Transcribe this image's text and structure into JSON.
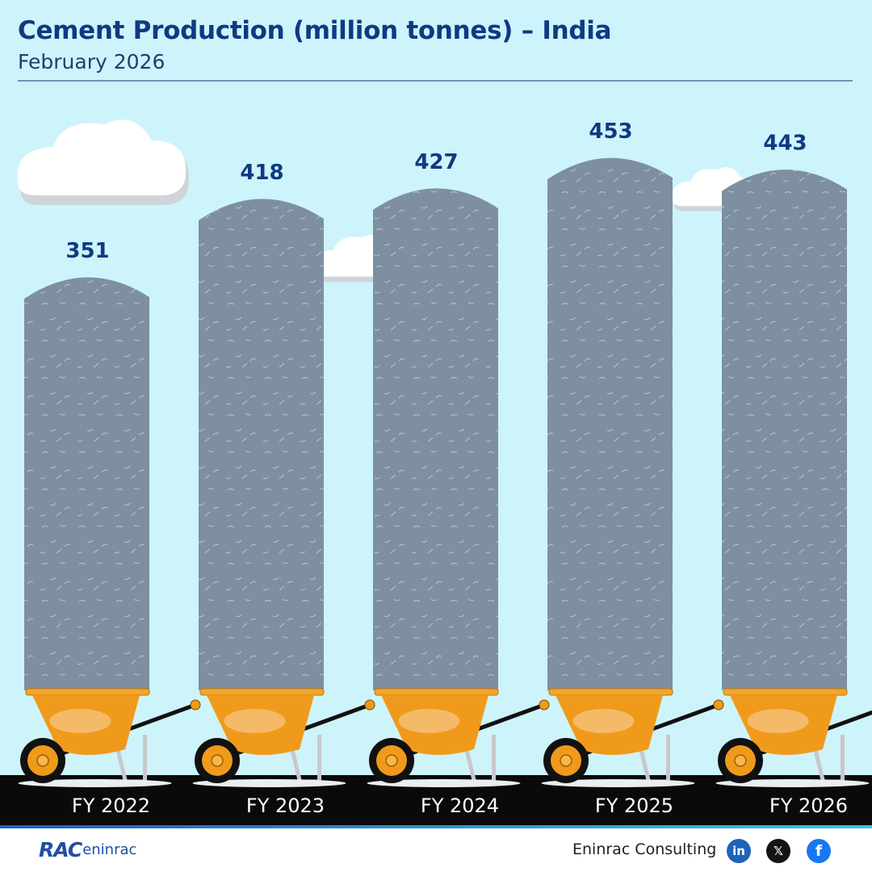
{
  "title": "Cement Production (million tonnes) – India",
  "subtitle": "February 2026",
  "chart_data": {
    "type": "bar",
    "title": "Cement Production (million tonnes) – India",
    "subtitle": "February 2026",
    "categories": [
      "FY 2022",
      "FY 2023",
      "FY 2024",
      "FY 2025",
      "FY 2026"
    ],
    "series": [
      {
        "values": [
          351,
          418,
          427,
          453,
          443
        ]
      }
    ],
    "xlabel": "",
    "ylabel": "",
    "grid": false,
    "legend": "none",
    "show_value_labels": true
  },
  "colors": {
    "sky": "#cdf4fb",
    "cement": "#7d8fa0",
    "bucket": "#f09a1c",
    "title": "#0f3a82",
    "ground": "#0a0a0a"
  },
  "footer": {
    "logo_mark": "RAC",
    "logo_text": "eninrac",
    "brand": "Eninrac Consulting",
    "social": [
      {
        "icon": "linkedin-icon",
        "glyph": "in"
      },
      {
        "icon": "x-icon",
        "glyph": "𝕏"
      },
      {
        "icon": "facebook-icon",
        "glyph": "f"
      }
    ]
  }
}
